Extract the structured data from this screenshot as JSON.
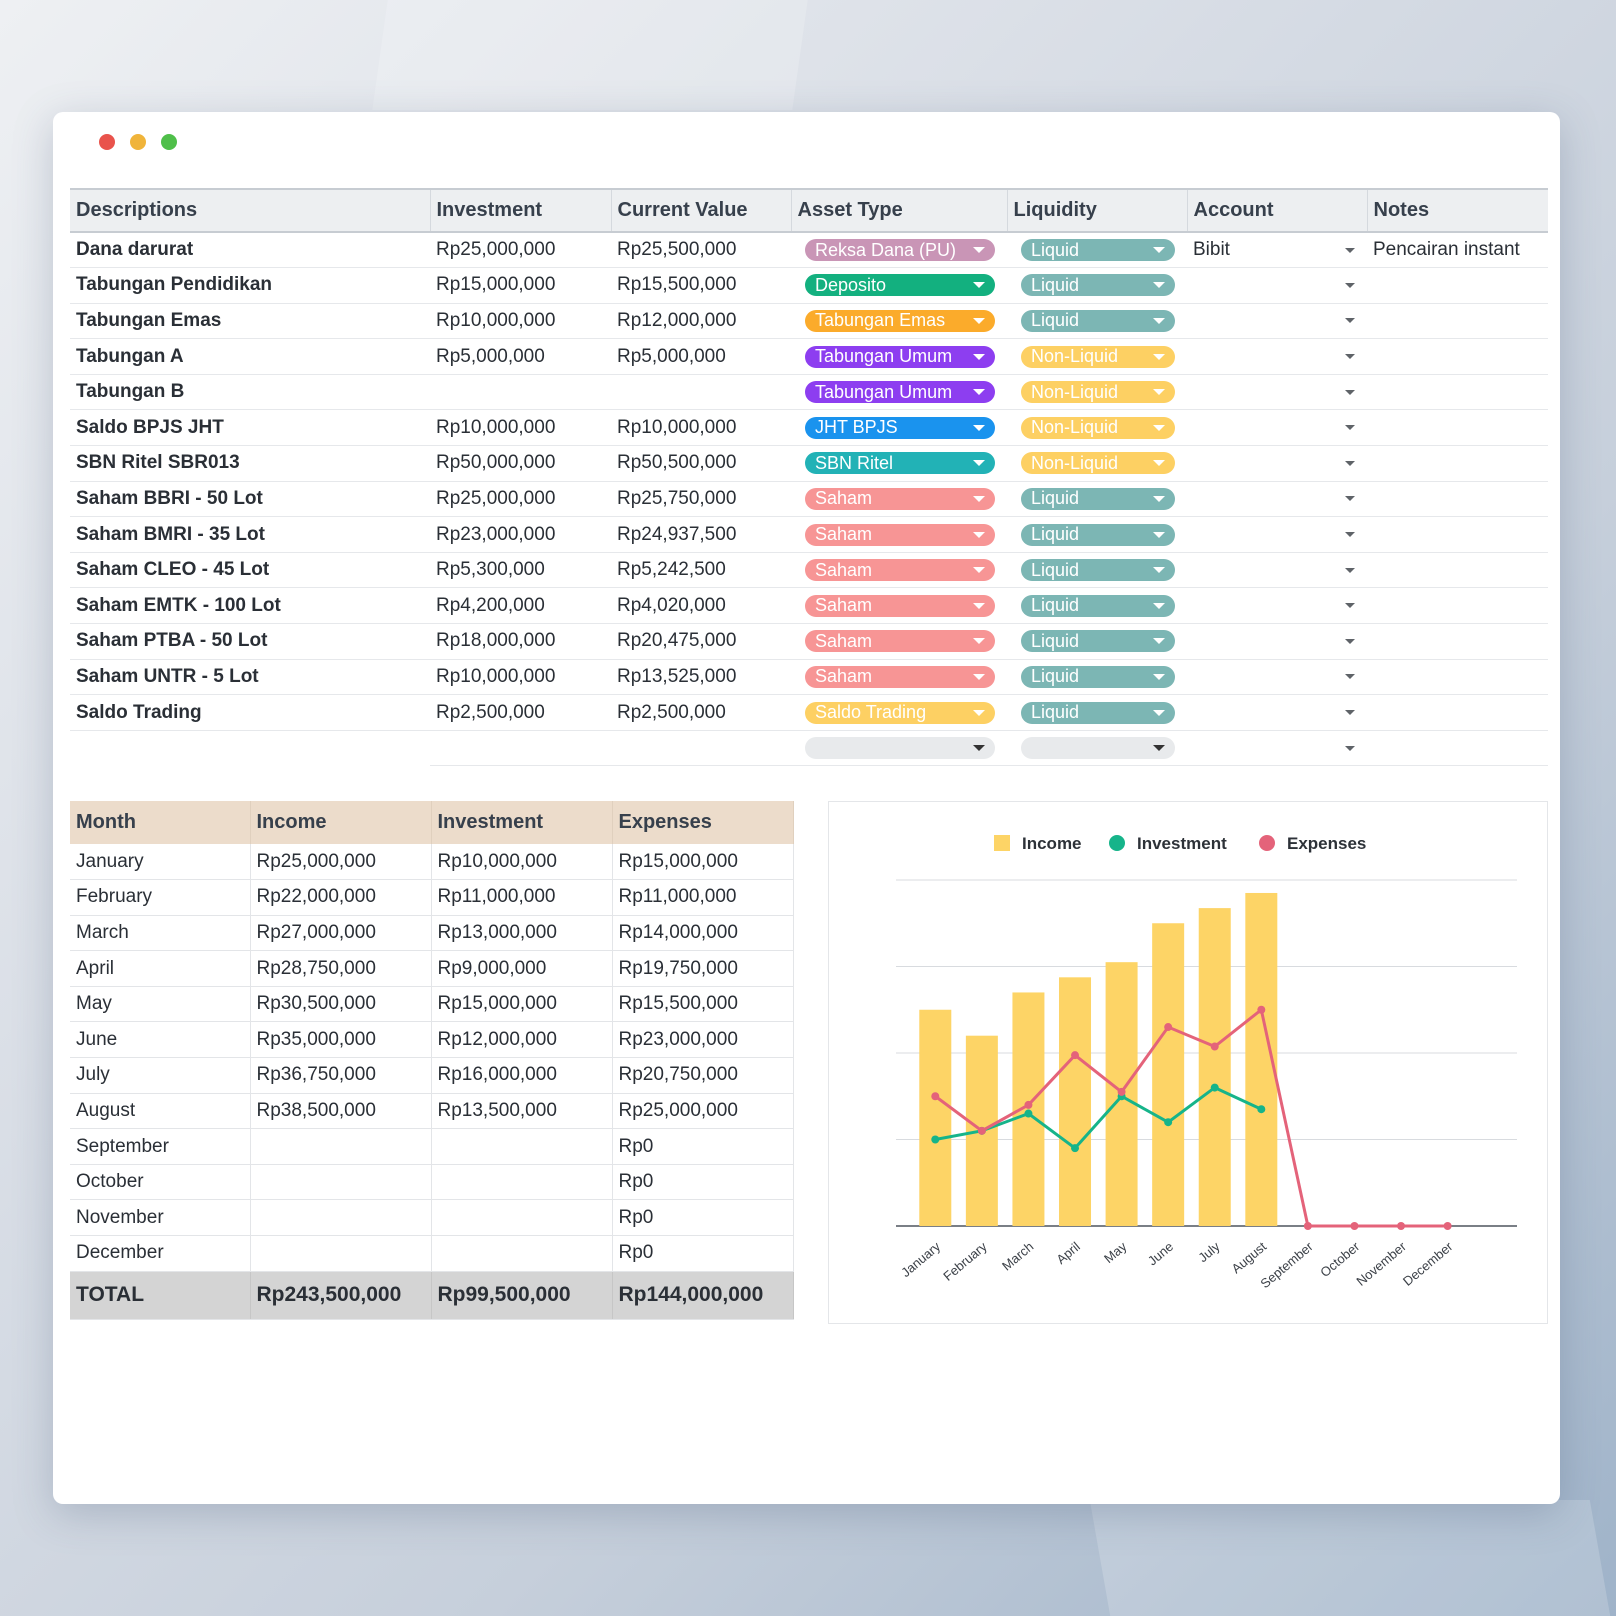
{
  "window": {
    "dots": [
      "#e9534c",
      "#f0b43a",
      "#4fbf4a"
    ]
  },
  "assets": {
    "headers": [
      "Descriptions",
      "Investment",
      "Current Value",
      "Asset Type",
      "Liquidity",
      "Account",
      "Notes"
    ],
    "rows": [
      {
        "desc": "Dana darurat",
        "investment": "Rp25,000,000",
        "current": "Rp25,500,000",
        "asset_type": "Reksa Dana (PU)",
        "asset_color": "#c995b6",
        "liquidity": "Liquid",
        "liq_color": "#7cb6b4",
        "account": "Bibit",
        "notes": "Pencairan instant"
      },
      {
        "desc": "Tabungan Pendidikan",
        "investment": "Rp15,000,000",
        "current": "Rp15,500,000",
        "asset_type": "Deposito",
        "asset_color": "#13b07f",
        "liquidity": "Liquid",
        "liq_color": "#7cb6b4",
        "account": "",
        "notes": ""
      },
      {
        "desc": "Tabungan Emas",
        "investment": "Rp10,000,000",
        "current": "Rp12,000,000",
        "asset_type": "Tabungan Emas",
        "asset_color": "#fbab2b",
        "liquidity": "Liquid",
        "liq_color": "#7cb6b4",
        "account": "",
        "notes": ""
      },
      {
        "desc": "Tabungan A",
        "investment": "Rp5,000,000",
        "current": "Rp5,000,000",
        "asset_type": "Tabungan Umum",
        "asset_color": "#8d3ef0",
        "liquidity": "Non-Liquid",
        "liq_color": "#fdd063",
        "account": "",
        "notes": ""
      },
      {
        "desc": "Tabungan B",
        "investment": "",
        "current": "",
        "asset_type": "Tabungan Umum",
        "asset_color": "#8d3ef0",
        "liquidity": "Non-Liquid",
        "liq_color": "#fdd063",
        "account": "",
        "notes": ""
      },
      {
        "desc": "Saldo BPJS JHT",
        "investment": "Rp10,000,000",
        "current": "Rp10,000,000",
        "asset_type": "JHT BPJS",
        "asset_color": "#1a93ee",
        "liquidity": "Non-Liquid",
        "liq_color": "#fdd063",
        "account": "",
        "notes": ""
      },
      {
        "desc": "SBN Ritel SBR013",
        "investment": "Rp50,000,000",
        "current": "Rp50,500,000",
        "asset_type": "SBN Ritel",
        "asset_color": "#22b2b6",
        "liquidity": "Non-Liquid",
        "liq_color": "#fdd063",
        "account": "",
        "notes": ""
      },
      {
        "desc": "Saham BBRI - 50 Lot",
        "investment": "Rp25,000,000",
        "current": "Rp25,750,000",
        "asset_type": "Saham",
        "asset_color": "#f79595",
        "liquidity": "Liquid",
        "liq_color": "#7cb6b4",
        "account": "",
        "notes": ""
      },
      {
        "desc": "Saham BMRI - 35 Lot",
        "investment": "Rp23,000,000",
        "current": "Rp24,937,500",
        "asset_type": "Saham",
        "asset_color": "#f79595",
        "liquidity": "Liquid",
        "liq_color": "#7cb6b4",
        "account": "",
        "notes": ""
      },
      {
        "desc": "Saham CLEO - 45 Lot",
        "investment": "Rp5,300,000",
        "current": "Rp5,242,500",
        "asset_type": "Saham",
        "asset_color": "#f79595",
        "liquidity": "Liquid",
        "liq_color": "#7cb6b4",
        "account": "",
        "notes": ""
      },
      {
        "desc": "Saham EMTK - 100 Lot",
        "investment": "Rp4,200,000",
        "current": "Rp4,020,000",
        "asset_type": "Saham",
        "asset_color": "#f79595",
        "liquidity": "Liquid",
        "liq_color": "#7cb6b4",
        "account": "",
        "notes": ""
      },
      {
        "desc": "Saham PTBA - 50 Lot",
        "investment": "Rp18,000,000",
        "current": "Rp20,475,000",
        "asset_type": "Saham",
        "asset_color": "#f79595",
        "liquidity": "Liquid",
        "liq_color": "#7cb6b4",
        "account": "",
        "notes": ""
      },
      {
        "desc": "Saham UNTR - 5 Lot",
        "investment": "Rp10,000,000",
        "current": "Rp13,525,000",
        "asset_type": "Saham",
        "asset_color": "#f79595",
        "liquidity": "Liquid",
        "liq_color": "#7cb6b4",
        "account": "",
        "notes": ""
      },
      {
        "desc": "Saldo Trading",
        "investment": "Rp2,500,000",
        "current": "Rp2,500,000",
        "asset_type": "Saldo Trading",
        "asset_color": "#fdd063",
        "liquidity": "Liquid",
        "liq_color": "#7cb6b4",
        "account": "",
        "notes": ""
      }
    ]
  },
  "monthly": {
    "headers": [
      "Month",
      "Income",
      "Investment",
      "Expenses"
    ],
    "rows": [
      {
        "month": "January",
        "income": "Rp25,000,000",
        "investment": "Rp10,000,000",
        "expenses": "Rp15,000,000"
      },
      {
        "month": "February",
        "income": "Rp22,000,000",
        "investment": "Rp11,000,000",
        "expenses": "Rp11,000,000"
      },
      {
        "month": "March",
        "income": "Rp27,000,000",
        "investment": "Rp13,000,000",
        "expenses": "Rp14,000,000"
      },
      {
        "month": "April",
        "income": "Rp28,750,000",
        "investment": "Rp9,000,000",
        "expenses": "Rp19,750,000"
      },
      {
        "month": "May",
        "income": "Rp30,500,000",
        "investment": "Rp15,000,000",
        "expenses": "Rp15,500,000"
      },
      {
        "month": "June",
        "income": "Rp35,000,000",
        "investment": "Rp12,000,000",
        "expenses": "Rp23,000,000"
      },
      {
        "month": "July",
        "income": "Rp36,750,000",
        "investment": "Rp16,000,000",
        "expenses": "Rp20,750,000"
      },
      {
        "month": "August",
        "income": "Rp38,500,000",
        "investment": "Rp13,500,000",
        "expenses": "Rp25,000,000"
      },
      {
        "month": "September",
        "income": "",
        "investment": "",
        "expenses": "Rp0"
      },
      {
        "month": "October",
        "income": "",
        "investment": "",
        "expenses": "Rp0"
      },
      {
        "month": "November",
        "income": "",
        "investment": "",
        "expenses": "Rp0"
      },
      {
        "month": "December",
        "income": "",
        "investment": "",
        "expenses": "Rp0"
      }
    ],
    "total": {
      "label": "TOTAL",
      "income": "Rp243,500,000",
      "investment": "Rp99,500,000",
      "expenses": "Rp144,000,000"
    }
  },
  "chart_data": {
    "type": "bar",
    "categories": [
      "January",
      "February",
      "March",
      "April",
      "May",
      "June",
      "July",
      "August",
      "September",
      "October",
      "November",
      "December"
    ],
    "series": [
      {
        "name": "Income",
        "kind": "bar",
        "color": "#fdd466",
        "values": [
          25000000,
          22000000,
          27000000,
          28750000,
          30500000,
          35000000,
          36750000,
          38500000,
          null,
          null,
          null,
          null
        ]
      },
      {
        "name": "Investment",
        "kind": "line",
        "color": "#16b48a",
        "values": [
          10000000,
          11000000,
          13000000,
          9000000,
          15000000,
          12000000,
          16000000,
          13500000,
          null,
          null,
          null,
          null
        ]
      },
      {
        "name": "Expenses",
        "kind": "line",
        "color": "#e4637a",
        "values": [
          15000000,
          11000000,
          14000000,
          19750000,
          15500000,
          23000000,
          20750000,
          25000000,
          0,
          0,
          0,
          0
        ]
      }
    ],
    "ylim": [
      0,
      40000000
    ],
    "grid": true,
    "legend": "top"
  }
}
